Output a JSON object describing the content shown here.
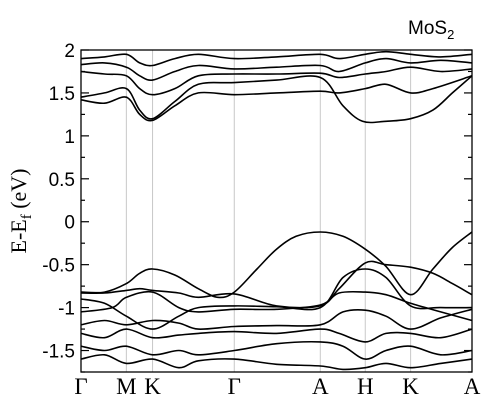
{
  "chart_data": {
    "type": "line",
    "title": "MoS",
    "title_subscript": "2",
    "ylabel": "E-E",
    "ylabel_subscript": "f",
    "ylabel_unit": " (eV)",
    "xlabel": "",
    "ylim": [
      -1.75,
      2.0
    ],
    "yticks": [
      -1.5,
      -1,
      -0.5,
      0,
      0.5,
      1,
      1.5,
      2
    ],
    "yticklabels": [
      "-1.5",
      "-1",
      "-0.5",
      "0",
      "0.5",
      "1",
      "1.5",
      "2"
    ],
    "kpoint_labels": [
      "Γ",
      "M",
      "K",
      "Γ",
      "A",
      "H",
      "K",
      "A"
    ],
    "kpoint_positions": [
      0,
      0.116,
      0.183,
      0.392,
      0.612,
      0.727,
      0.843,
      1.0
    ],
    "grid": false,
    "series": [
      {
        "values": [
          [
            0,
            -0.82
          ],
          [
            0.06,
            -0.82
          ],
          [
            0.116,
            -0.72
          ],
          [
            0.15,
            -0.6
          ],
          [
            0.183,
            -0.55
          ],
          [
            0.24,
            -0.62
          ],
          [
            0.3,
            -0.78
          ],
          [
            0.35,
            -0.88
          ],
          [
            0.392,
            -0.82
          ],
          [
            0.45,
            -0.55
          ],
          [
            0.5,
            -0.32
          ],
          [
            0.55,
            -0.17
          ],
          [
            0.612,
            -0.12
          ],
          [
            0.67,
            -0.17
          ],
          [
            0.727,
            -0.32
          ],
          [
            0.78,
            -0.52
          ],
          [
            0.843,
            -0.85
          ],
          [
            0.9,
            -0.55
          ],
          [
            0.95,
            -0.3
          ],
          [
            1.0,
            -0.12
          ]
        ]
      },
      {
        "values": [
          [
            0,
            -0.83
          ],
          [
            0.06,
            -0.83
          ],
          [
            0.116,
            -0.8
          ],
          [
            0.15,
            -0.78
          ],
          [
            0.183,
            -0.8
          ],
          [
            0.25,
            -0.83
          ],
          [
            0.3,
            -0.88
          ],
          [
            0.392,
            -0.84
          ],
          [
            0.5,
            -0.98
          ],
          [
            0.612,
            -0.98
          ],
          [
            0.66,
            -0.78
          ],
          [
            0.727,
            -0.48
          ],
          [
            0.78,
            -0.5
          ],
          [
            0.843,
            -0.53
          ],
          [
            0.9,
            -0.6
          ],
          [
            0.95,
            -0.72
          ],
          [
            1.0,
            -0.85
          ]
        ]
      },
      {
        "values": [
          [
            0,
            -0.9
          ],
          [
            0.06,
            -0.95
          ],
          [
            0.116,
            -1.1
          ],
          [
            0.183,
            -1.25
          ],
          [
            0.25,
            -1.1
          ],
          [
            0.3,
            -1.0
          ],
          [
            0.392,
            -0.98
          ],
          [
            0.5,
            -0.99
          ],
          [
            0.612,
            -1.0
          ],
          [
            0.67,
            -0.65
          ],
          [
            0.727,
            -0.55
          ],
          [
            0.78,
            -0.65
          ],
          [
            0.843,
            -0.98
          ],
          [
            0.92,
            -1.0
          ],
          [
            1.0,
            -1.0
          ]
        ]
      },
      {
        "values": [
          [
            0,
            -1.05
          ],
          [
            0.08,
            -1.0
          ],
          [
            0.116,
            -0.88
          ],
          [
            0.183,
            -0.82
          ],
          [
            0.25,
            -1.0
          ],
          [
            0.3,
            -1.05
          ],
          [
            0.392,
            -1.02
          ],
          [
            0.5,
            -1.02
          ],
          [
            0.612,
            -0.97
          ],
          [
            0.66,
            -0.83
          ],
          [
            0.727,
            -0.82
          ],
          [
            0.78,
            -0.85
          ],
          [
            0.843,
            -0.95
          ],
          [
            0.92,
            -1.05
          ],
          [
            1.0,
            -1.15
          ]
        ]
      },
      {
        "values": [
          [
            0,
            -1.2
          ],
          [
            0.06,
            -1.15
          ],
          [
            0.116,
            -1.2
          ],
          [
            0.183,
            -1.15
          ],
          [
            0.25,
            -1.18
          ],
          [
            0.3,
            -1.25
          ],
          [
            0.392,
            -1.22
          ],
          [
            0.5,
            -1.21
          ],
          [
            0.612,
            -1.2
          ],
          [
            0.67,
            -1.05
          ],
          [
            0.727,
            -1.03
          ],
          [
            0.78,
            -1.1
          ],
          [
            0.843,
            -1.25
          ],
          [
            0.92,
            -1.12
          ],
          [
            1.0,
            -1.02
          ]
        ]
      },
      {
        "values": [
          [
            0,
            -1.3
          ],
          [
            0.06,
            -1.35
          ],
          [
            0.116,
            -1.25
          ],
          [
            0.183,
            -1.35
          ],
          [
            0.25,
            -1.32
          ],
          [
            0.3,
            -1.3
          ],
          [
            0.392,
            -1.28
          ],
          [
            0.5,
            -1.3
          ],
          [
            0.612,
            -1.25
          ],
          [
            0.66,
            -1.3
          ],
          [
            0.727,
            -1.4
          ],
          [
            0.78,
            -1.3
          ],
          [
            0.843,
            -1.3
          ],
          [
            0.92,
            -1.35
          ],
          [
            1.0,
            -1.25
          ]
        ]
      },
      {
        "values": [
          [
            0,
            -1.45
          ],
          [
            0.06,
            -1.5
          ],
          [
            0.116,
            -1.45
          ],
          [
            0.183,
            -1.55
          ],
          [
            0.25,
            -1.5
          ],
          [
            0.3,
            -1.55
          ],
          [
            0.392,
            -1.5
          ],
          [
            0.5,
            -1.42
          ],
          [
            0.612,
            -1.4
          ],
          [
            0.67,
            -1.45
          ],
          [
            0.727,
            -1.6
          ],
          [
            0.78,
            -1.5
          ],
          [
            0.843,
            -1.45
          ],
          [
            0.92,
            -1.55
          ],
          [
            1.0,
            -1.5
          ]
        ]
      },
      {
        "values": [
          [
            0,
            -1.6
          ],
          [
            0.06,
            -1.55
          ],
          [
            0.116,
            -1.65
          ],
          [
            0.183,
            -1.6
          ],
          [
            0.25,
            -1.7
          ],
          [
            0.3,
            -1.62
          ],
          [
            0.392,
            -1.6
          ],
          [
            0.5,
            -1.66
          ],
          [
            0.612,
            -1.68
          ],
          [
            0.67,
            -1.72
          ],
          [
            0.727,
            -1.7
          ],
          [
            0.78,
            -1.65
          ],
          [
            0.843,
            -1.7
          ],
          [
            0.92,
            -1.65
          ],
          [
            1.0,
            -1.6
          ]
        ]
      },
      {
        "values": [
          [
            0,
            1.45
          ],
          [
            0.06,
            1.5
          ],
          [
            0.116,
            1.55
          ],
          [
            0.15,
            1.3
          ],
          [
            0.183,
            1.2
          ],
          [
            0.24,
            1.4
          ],
          [
            0.3,
            1.6
          ],
          [
            0.392,
            1.62
          ],
          [
            0.5,
            1.65
          ],
          [
            0.612,
            1.68
          ],
          [
            0.67,
            1.35
          ],
          [
            0.72,
            1.17
          ],
          [
            0.78,
            1.17
          ],
          [
            0.843,
            1.2
          ],
          [
            0.9,
            1.3
          ],
          [
            0.95,
            1.5
          ],
          [
            1.0,
            1.7
          ]
        ]
      },
      {
        "values": [
          [
            0,
            1.42
          ],
          [
            0.06,
            1.38
          ],
          [
            0.116,
            1.45
          ],
          [
            0.15,
            1.25
          ],
          [
            0.183,
            1.18
          ],
          [
            0.24,
            1.35
          ],
          [
            0.3,
            1.5
          ],
          [
            0.392,
            1.48
          ],
          [
            0.5,
            1.5
          ],
          [
            0.612,
            1.52
          ],
          [
            0.66,
            1.5
          ],
          [
            0.727,
            1.55
          ],
          [
            0.78,
            1.6
          ],
          [
            0.843,
            1.5
          ],
          [
            0.9,
            1.55
          ],
          [
            1.0,
            1.7
          ]
        ]
      },
      {
        "values": [
          [
            0,
            1.75
          ],
          [
            0.06,
            1.72
          ],
          [
            0.116,
            1.7
          ],
          [
            0.15,
            1.55
          ],
          [
            0.183,
            1.48
          ],
          [
            0.24,
            1.55
          ],
          [
            0.3,
            1.7
          ],
          [
            0.392,
            1.72
          ],
          [
            0.5,
            1.72
          ],
          [
            0.612,
            1.73
          ],
          [
            0.66,
            1.68
          ],
          [
            0.727,
            1.72
          ],
          [
            0.78,
            1.75
          ],
          [
            0.843,
            1.8
          ],
          [
            0.92,
            1.75
          ],
          [
            1.0,
            1.78
          ]
        ]
      },
      {
        "values": [
          [
            0,
            1.83
          ],
          [
            0.06,
            1.85
          ],
          [
            0.116,
            1.8
          ],
          [
            0.15,
            1.7
          ],
          [
            0.183,
            1.65
          ],
          [
            0.24,
            1.75
          ],
          [
            0.3,
            1.82
          ],
          [
            0.392,
            1.78
          ],
          [
            0.5,
            1.8
          ],
          [
            0.612,
            1.82
          ],
          [
            0.66,
            1.75
          ],
          [
            0.727,
            1.85
          ],
          [
            0.78,
            1.9
          ],
          [
            0.843,
            1.85
          ],
          [
            0.92,
            1.88
          ],
          [
            1.0,
            1.85
          ]
        ]
      },
      {
        "values": [
          [
            0,
            1.9
          ],
          [
            0.06,
            1.92
          ],
          [
            0.116,
            1.95
          ],
          [
            0.15,
            1.85
          ],
          [
            0.183,
            1.82
          ],
          [
            0.24,
            1.9
          ],
          [
            0.3,
            1.95
          ],
          [
            0.392,
            1.9
          ],
          [
            0.5,
            1.92
          ],
          [
            0.612,
            1.95
          ],
          [
            0.66,
            1.9
          ],
          [
            0.727,
            1.95
          ],
          [
            0.78,
            1.98
          ],
          [
            0.843,
            1.95
          ],
          [
            0.92,
            1.92
          ],
          [
            1.0,
            1.95
          ]
        ]
      }
    ]
  }
}
